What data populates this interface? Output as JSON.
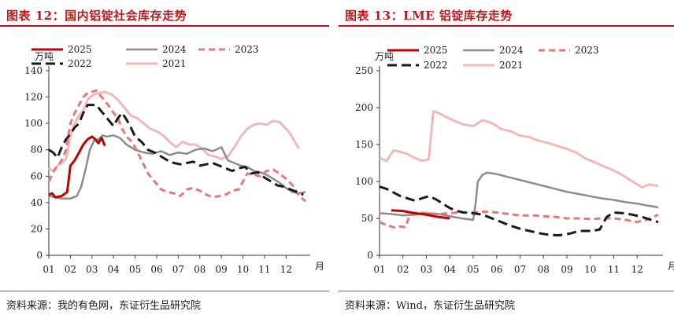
{
  "panels": [
    {
      "title": "图表 12：国内铝锭社会库存走势",
      "source": "资料来源：我的有色网，东证衍生品研究院",
      "chart_data": {
        "type": "line",
        "unit_label": "万吨",
        "x_unit_label": "月",
        "x_ticks": [
          "01",
          "02",
          "03",
          "04",
          "05",
          "06",
          "07",
          "08",
          "09",
          "10",
          "11",
          "12"
        ],
        "y_ticks": [
          "0",
          "20",
          "40",
          "60",
          "80",
          "100",
          "120",
          "140"
        ],
        "ylim": [
          0,
          140
        ],
        "xlim": [
          1,
          12.9
        ],
        "grid": false,
        "legend_position": "top",
        "series": [
          {
            "name": "2025",
            "color": "#c00000",
            "dash": "solid",
            "width": 3,
            "x": [
              1.0,
              1.15,
              1.3,
              1.6,
              1.85,
              2.0,
              2.2,
              2.4,
              2.6,
              2.8,
              3.0,
              3.15,
              3.3,
              3.45,
              3.6
            ],
            "y": [
              46,
              47,
              44,
              45,
              48,
              68,
              72,
              78,
              84,
              88,
              90,
              88,
              85,
              89,
              83
            ]
          },
          {
            "name": "2024",
            "color": "#8c8c8c",
            "dash": "solid",
            "width": 2.5,
            "x": [
              1.0,
              1.3,
              1.6,
              1.8,
              2.0,
              2.3,
              2.5,
              2.7,
              2.9,
              3.1,
              3.3,
              3.5,
              3.7,
              4.0,
              4.3,
              4.6,
              5.0,
              5.4,
              5.8,
              6.2,
              6.6,
              7.0,
              7.4,
              7.8,
              8.2,
              8.6,
              9.0,
              9.3,
              9.6,
              9.9,
              10.2,
              10.5,
              10.8,
              11.1,
              11.4,
              11.7,
              12.0,
              12.3,
              12.6,
              12.9
            ],
            "y": [
              45,
              44,
              43,
              43,
              43,
              45,
              52,
              65,
              80,
              87,
              88,
              91,
              90,
              91,
              89,
              84,
              80,
              78,
              77,
              79,
              76,
              78,
              77,
              80,
              81,
              79,
              82,
              72,
              70,
              68,
              67,
              64,
              63,
              61,
              58,
              55,
              51,
              48,
              47,
              48
            ]
          },
          {
            "name": "2023",
            "color": "#e37a7a",
            "dash": "8,5",
            "width": 3,
            "x": [
              1.0,
              1.2,
              1.4,
              1.6,
              1.8,
              2.0,
              2.2,
              2.4,
              2.6,
              2.8,
              3.0,
              3.2,
              3.4,
              3.6,
              3.8,
              4.0,
              4.2,
              4.4,
              4.6,
              4.8,
              5.0,
              5.3,
              5.6,
              5.9,
              6.2,
              6.5,
              6.8,
              7.1,
              7.4,
              7.7,
              8.0,
              8.3,
              8.6,
              8.9,
              9.2,
              9.5,
              9.8,
              10.0,
              10.2,
              10.5,
              10.8,
              11.1,
              11.4,
              11.7,
              12.0,
              12.3,
              12.6,
              12.9
            ],
            "y": [
              56,
              63,
              68,
              72,
              80,
              100,
              108,
              114,
              120,
              123,
              124,
              125,
              121,
              117,
              113,
              108,
              104,
              96,
              90,
              87,
              82,
              72,
              62,
              56,
              50,
              48,
              47,
              45,
              50,
              51,
              49,
              46,
              44,
              45,
              46,
              49,
              50,
              56,
              62,
              61,
              60,
              64,
              65,
              62,
              58,
              53,
              45,
              41
            ]
          },
          {
            "name": "2022",
            "color": "#1a1a1a",
            "dash": "12,6",
            "width": 3,
            "x": [
              1.0,
              1.2,
              1.4,
              1.6,
              1.8,
              2.0,
              2.2,
              2.4,
              2.6,
              2.8,
              3.0,
              3.2,
              3.4,
              3.6,
              3.8,
              4.0,
              4.2,
              4.4,
              4.6,
              4.8,
              5.0,
              5.3,
              5.6,
              5.9,
              6.2,
              6.5,
              6.8,
              7.1,
              7.4,
              7.7,
              8.0,
              8.3,
              8.6,
              8.9,
              9.2,
              9.5,
              9.8,
              10.1,
              10.4,
              10.7,
              11.0,
              11.3,
              11.6,
              11.9,
              12.2,
              12.5,
              12.8
            ],
            "y": [
              80,
              78,
              74,
              82,
              88,
              92,
              97,
              100,
              108,
              114,
              114,
              114,
              110,
              106,
              102,
              98,
              104,
              108,
              103,
              97,
              90,
              86,
              80,
              78,
              75,
              72,
              70,
              69,
              70,
              71,
              68,
              69,
              70,
              68,
              66,
              64,
              66,
              67,
              62,
              63,
              59,
              56,
              53,
              52,
              50,
              48,
              46
            ]
          },
          {
            "name": "2021",
            "color": "#f2b8b8",
            "dash": "solid",
            "width": 3,
            "x": [
              1.0,
              1.2,
              1.4,
              1.6,
              1.8,
              2.0,
              2.2,
              2.4,
              2.6,
              2.8,
              3.0,
              3.3,
              3.6,
              3.9,
              4.2,
              4.5,
              4.8,
              5.1,
              5.4,
              5.7,
              6.0,
              6.3,
              6.6,
              6.9,
              7.2,
              7.5,
              7.8,
              8.1,
              8.4,
              8.7,
              9.0,
              9.3,
              9.6,
              9.9,
              10.2,
              10.5,
              10.8,
              11.1,
              11.4,
              11.7,
              12.0,
              12.2,
              12.4,
              12.6
            ],
            "y": [
              66,
              64,
              68,
              70,
              73,
              90,
              100,
              106,
              110,
              118,
              121,
              123,
              124,
              122,
              118,
              112,
              106,
              104,
              100,
              96,
              94,
              91,
              86,
              82,
              86,
              84,
              84,
              81,
              76,
              75,
              73,
              75,
              82,
              90,
              96,
              99,
              100,
              99,
              102,
              101,
              96,
              92,
              86,
              81
            ]
          }
        ]
      }
    },
    {
      "title": "图表 13：LME 铝锭库存走势",
      "source": "资料来源：Wind，东证衍生品研究院",
      "chart_data": {
        "type": "line",
        "unit_label": "万吨",
        "x_unit_label": "月",
        "x_ticks": [
          "01",
          "02",
          "03",
          "04",
          "05",
          "06",
          "07",
          "08",
          "09",
          "10",
          "11",
          "12"
        ],
        "y_ticks": [
          "0",
          "50",
          "100",
          "150",
          "200",
          "250"
        ],
        "ylim": [
          0,
          250
        ],
        "xlim": [
          1,
          12.9
        ],
        "grid": false,
        "legend_position": "top",
        "series": [
          {
            "name": "2025",
            "color": "#c00000",
            "dash": "solid",
            "width": 3,
            "x": [
              1.5,
              2.0,
              2.5,
              3.0,
              3.5,
              4.0
            ],
            "y": [
              61,
              60,
              57,
              55,
              52,
              50
            ]
          },
          {
            "name": "2024",
            "color": "#8c8c8c",
            "dash": "solid",
            "width": 2.5,
            "x": [
              1.0,
              1.5,
              2.0,
              2.5,
              3.0,
              3.5,
              4.0,
              4.5,
              5.0,
              5.1,
              5.2,
              5.4,
              5.6,
              6.0,
              6.5,
              7.0,
              7.5,
              8.0,
              8.5,
              9.0,
              9.5,
              10.0,
              10.5,
              11.0,
              11.5,
              12.0,
              12.5,
              12.9
            ],
            "y": [
              57,
              56,
              54,
              55,
              57,
              56,
              53,
              50,
              48,
              70,
              100,
              109,
              112,
              110,
              106,
              102,
              98,
              94,
              90,
              86,
              83,
              80,
              77,
              75,
              72,
              70,
              67,
              65
            ]
          },
          {
            "name": "2023",
            "color": "#e37a7a",
            "dash": "8,5",
            "width": 3,
            "x": [
              1.0,
              1.3,
              1.6,
              1.9,
              2.1,
              2.3,
              2.6,
              3.0,
              3.5,
              4.0,
              4.5,
              5.0,
              5.5,
              6.0,
              6.5,
              7.0,
              7.5,
              8.0,
              8.5,
              9.0,
              9.5,
              10.0,
              10.5,
              11.0,
              11.5,
              12.0,
              12.5,
              12.9
            ],
            "y": [
              45,
              41,
              38,
              39,
              38,
              55,
              58,
              57,
              56,
              57,
              58,
              58,
              59,
              58,
              56,
              54,
              54,
              53,
              52,
              50,
              50,
              49,
              50,
              50,
              48,
              45,
              49,
              55
            ]
          },
          {
            "name": "2022",
            "color": "#1a1a1a",
            "dash": "12,6",
            "width": 3,
            "x": [
              1.0,
              1.3,
              1.6,
              1.9,
              2.2,
              2.5,
              2.8,
              3.1,
              3.4,
              3.7,
              4.0,
              4.3,
              4.6,
              5.0,
              5.4,
              5.8,
              6.2,
              6.6,
              7.0,
              7.4,
              7.8,
              8.2,
              8.6,
              8.9,
              9.2,
              9.5,
              9.8,
              10.1,
              10.4,
              10.7,
              11.0,
              11.4,
              11.8,
              12.2,
              12.6,
              12.9
            ],
            "y": [
              93,
              90,
              85,
              80,
              77,
              74,
              77,
              80,
              76,
              70,
              64,
              60,
              58,
              57,
              55,
              50,
              45,
              40,
              36,
              33,
              30,
              28,
              27,
              28,
              30,
              33,
              33,
              33,
              35,
              52,
              58,
              57,
              55,
              52,
              48,
              45
            ]
          },
          {
            "name": "2021",
            "color": "#f2b8b8",
            "dash": "solid",
            "width": 3,
            "x": [
              1.0,
              1.3,
              1.6,
              1.9,
              2.2,
              2.5,
              2.8,
              3.1,
              3.3,
              3.5,
              3.8,
              4.2,
              4.6,
              5.0,
              5.4,
              5.8,
              6.2,
              6.6,
              7.0,
              7.4,
              7.8,
              8.2,
              8.6,
              9.0,
              9.4,
              9.8,
              10.2,
              10.6,
              11.0,
              11.4,
              11.8,
              12.2,
              12.5,
              12.9
            ],
            "y": [
              132,
              128,
              142,
              140,
              137,
              132,
              128,
              130,
              195,
              193,
              188,
              182,
              177,
              175,
              183,
              179,
              171,
              168,
              162,
              160,
              155,
              152,
              148,
              144,
              139,
              131,
              126,
              120,
              115,
              108,
              100,
              92,
              96,
              94
            ]
          }
        ]
      }
    }
  ]
}
